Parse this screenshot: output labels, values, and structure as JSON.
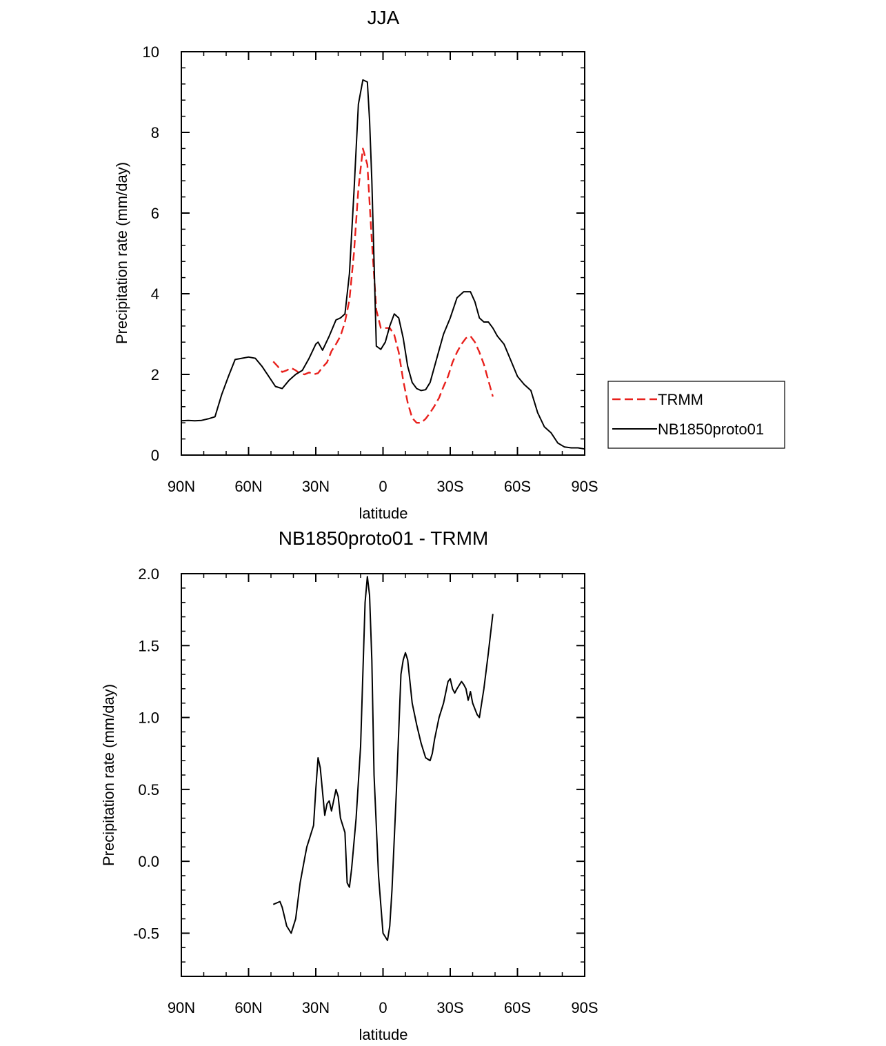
{
  "chart_data": [
    {
      "type": "line",
      "title": "JJA",
      "xlabel": "latitude",
      "ylabel": "Precipitation rate (mm/day)",
      "xlim": [
        90,
        -90
      ],
      "ylim": [
        0,
        10
      ],
      "yticks": [
        0,
        2,
        4,
        6,
        8,
        10
      ],
      "ytick_labels": [
        "0",
        "2",
        "4",
        "6",
        "8",
        "10"
      ],
      "xticks": [
        90,
        60,
        30,
        0,
        -30,
        -60,
        -90
      ],
      "xtick_labels": [
        "90N",
        "60N",
        "30N",
        "0",
        "30S",
        "60S",
        "90S"
      ],
      "legend": {
        "position": "right",
        "entries": [
          "TRMM",
          "NB1850proto01"
        ]
      },
      "series": [
        {
          "name": "TRMM",
          "color": "#e8201c",
          "dash": "dashed",
          "x": [
            49,
            47,
            45,
            43,
            41,
            39,
            37,
            35,
            33,
            31,
            29,
            27,
            25,
            23,
            21,
            19,
            17,
            15,
            13,
            11,
            9,
            7,
            5,
            3,
            1,
            -1,
            -3,
            -5,
            -7,
            -9,
            -11,
            -13,
            -15,
            -17,
            -19,
            -21,
            -23,
            -25,
            -27,
            -29,
            -31,
            -33,
            -35,
            -37,
            -39,
            -41,
            -43,
            -45,
            -47,
            -49
          ],
          "y": [
            2.32,
            2.2,
            2.06,
            2.1,
            2.16,
            2.1,
            2.02,
            2.0,
            2.05,
            2.0,
            2.03,
            2.18,
            2.3,
            2.58,
            2.75,
            2.95,
            3.3,
            3.85,
            5.0,
            6.6,
            7.6,
            7.2,
            5.3,
            3.6,
            3.15,
            3.15,
            3.15,
            2.98,
            2.55,
            1.85,
            1.3,
            0.92,
            0.8,
            0.8,
            0.9,
            1.05,
            1.22,
            1.42,
            1.7,
            1.95,
            2.3,
            2.55,
            2.75,
            2.9,
            2.95,
            2.8,
            2.55,
            2.25,
            1.85,
            1.45
          ]
        },
        {
          "name": "NB1850proto01",
          "color": "#000000",
          "dash": "solid",
          "x": [
            90,
            87,
            84,
            81,
            78,
            75,
            72,
            69,
            66,
            63,
            60,
            57,
            54,
            51,
            48,
            45,
            42,
            39,
            36,
            33,
            30,
            29,
            27,
            24,
            21,
            19,
            17,
            15,
            13,
            11,
            9,
            7,
            6,
            5,
            4,
            3,
            1,
            -1,
            -3,
            -5,
            -7,
            -9,
            -11,
            -13,
            -15,
            -17,
            -19,
            -21,
            -24,
            -27,
            -30,
            -33,
            -36,
            -39,
            -41,
            -43,
            -45,
            -47,
            -49,
            -51,
            -54,
            -57,
            -60,
            -63,
            -66,
            -69,
            -72,
            -75,
            -78,
            -81,
            -84,
            -87,
            -90
          ],
          "y": [
            0.85,
            0.86,
            0.85,
            0.86,
            0.9,
            0.95,
            1.5,
            1.95,
            2.37,
            2.4,
            2.43,
            2.4,
            2.2,
            1.95,
            1.7,
            1.65,
            1.85,
            2.0,
            2.1,
            2.4,
            2.75,
            2.8,
            2.6,
            2.95,
            3.35,
            3.4,
            3.5,
            4.5,
            6.5,
            8.7,
            9.3,
            9.25,
            8.3,
            6.8,
            4.8,
            2.7,
            2.62,
            2.8,
            3.2,
            3.5,
            3.4,
            2.9,
            2.2,
            1.8,
            1.65,
            1.6,
            1.62,
            1.8,
            2.4,
            3.0,
            3.4,
            3.9,
            4.05,
            4.05,
            3.8,
            3.4,
            3.3,
            3.3,
            3.15,
            2.95,
            2.75,
            2.35,
            1.95,
            1.75,
            1.6,
            1.05,
            0.7,
            0.55,
            0.3,
            0.2,
            0.18,
            0.18,
            0.15
          ]
        }
      ]
    },
    {
      "type": "line",
      "title": "NB1850proto01 - TRMM",
      "xlabel": "latitude",
      "ylabel": "Precipitation rate (mm/day)",
      "xlim": [
        90,
        -90
      ],
      "ylim": [
        -0.8,
        2.0
      ],
      "yticks": [
        -0.5,
        0.0,
        0.5,
        1.0,
        1.5,
        2.0
      ],
      "ytick_labels": [
        "-0.5",
        "0.0",
        "0.5",
        "1.0",
        "1.5",
        "2.0"
      ],
      "xticks": [
        90,
        60,
        30,
        0,
        -30,
        -60,
        -90
      ],
      "xtick_labels": [
        "90N",
        "60N",
        "30N",
        "0",
        "30S",
        "60S",
        "90S"
      ],
      "series": [
        {
          "name": "NB1850proto01 - TRMM",
          "color": "#000000",
          "dash": "solid",
          "x": [
            49,
            46,
            45,
            43,
            41,
            39,
            37,
            35,
            34,
            33,
            31,
            30,
            29,
            28,
            26,
            25,
            24,
            23,
            21,
            20,
            19,
            17,
            16,
            15,
            14,
            12,
            10,
            8,
            7,
            6,
            5,
            4,
            2,
            0,
            -2,
            -3,
            -4,
            -6,
            -8,
            -9,
            -10,
            -11,
            -13,
            -15,
            -17,
            -19,
            -21,
            -22,
            -23,
            -25,
            -27,
            -29,
            -30,
            -31,
            -32,
            -33,
            -35,
            -36,
            -37,
            -38,
            -39,
            -40,
            -42,
            -43,
            -45,
            -47,
            -49
          ],
          "y": [
            -0.3,
            -0.28,
            -0.32,
            -0.45,
            -0.5,
            -0.4,
            -0.15,
            0.02,
            0.1,
            0.15,
            0.25,
            0.5,
            0.72,
            0.65,
            0.32,
            0.4,
            0.42,
            0.35,
            0.5,
            0.45,
            0.3,
            0.2,
            -0.15,
            -0.18,
            -0.05,
            0.3,
            0.8,
            1.8,
            1.98,
            1.85,
            1.4,
            0.6,
            -0.1,
            -0.5,
            -0.55,
            -0.45,
            -0.2,
            0.5,
            1.3,
            1.4,
            1.45,
            1.4,
            1.1,
            0.95,
            0.82,
            0.72,
            0.7,
            0.75,
            0.85,
            1.0,
            1.1,
            1.25,
            1.27,
            1.2,
            1.17,
            1.2,
            1.25,
            1.23,
            1.2,
            1.12,
            1.18,
            1.1,
            1.02,
            1.0,
            1.2,
            1.45,
            1.72
          ]
        }
      ]
    }
  ]
}
